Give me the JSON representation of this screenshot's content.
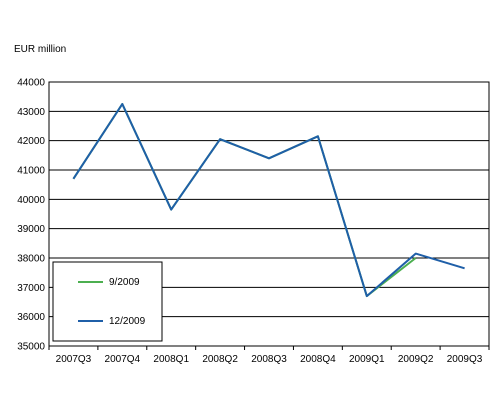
{
  "chart_data": {
    "type": "line",
    "title": "",
    "ylabel": "EUR million",
    "xlabel": "",
    "ylim": [
      35000,
      44000
    ],
    "yticks": [
      35000,
      36000,
      37000,
      38000,
      39000,
      40000,
      41000,
      42000,
      43000,
      44000
    ],
    "categories": [
      "2007Q3",
      "2007Q4",
      "2008Q1",
      "2008Q2",
      "2008Q3",
      "2008Q4",
      "2009Q1",
      "2009Q2",
      "2009Q3"
    ],
    "grid": "horizontal",
    "legend_position": "bottom-left, inside plot",
    "series": [
      {
        "name": "9/2009",
        "color": "#4caf50",
        "values": [
          40700,
          43250,
          39650,
          42050,
          41400,
          42150,
          36700,
          38000,
          null
        ]
      },
      {
        "name": "12/2009",
        "color": "#1f5fa8",
        "values": [
          40700,
          43250,
          39650,
          42050,
          41400,
          42150,
          36700,
          38150,
          37650
        ]
      }
    ]
  }
}
